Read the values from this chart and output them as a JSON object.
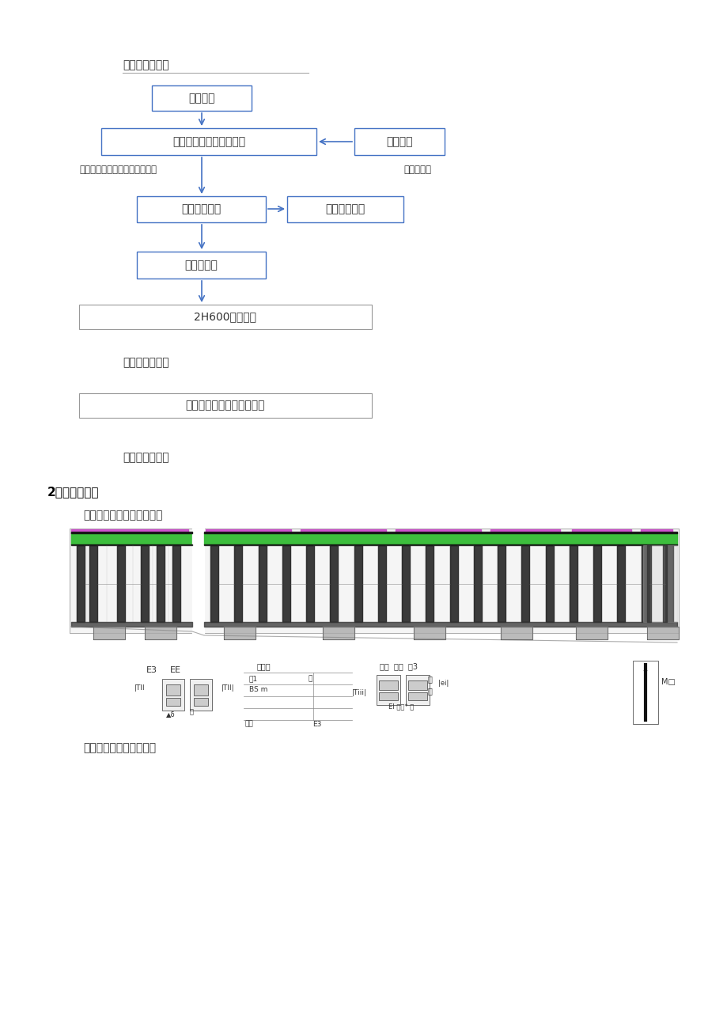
{
  "bg_color": "#ffffff",
  "box_color": "#4472c4",
  "arrow_color": "#4472c4",
  "gray_border": "#999999",
  "text_dark": "#333333",
  "text_black": "#000000",
  "flowchart_title": "支架设计与加工",
  "box1_text": "地基处理",
  "box2_text": "扩大基础砼浇注及埋件埋",
  "box_r1_text": "测量控制",
  "label_left": "钢管桩立柱分层接高及平联安装",
  "label_right": "垂直度校核",
  "box3_text": "桩帽钢板安装",
  "box_r2_text": "桩顶标高复核",
  "box4_text": "卸荷块安装",
  "box5_text": "2H600横梁安装",
  "text_leino": "贝雷片纵梁安装",
  "box6_text": "分配梁及翼缘处脚手架安装",
  "text_zhu": "竹胶板底模铺设",
  "section2": "2、支架布置图",
  "sub1": "南岸支架总体布置图见下：",
  "sub2": "普通跨支架布置图见下："
}
